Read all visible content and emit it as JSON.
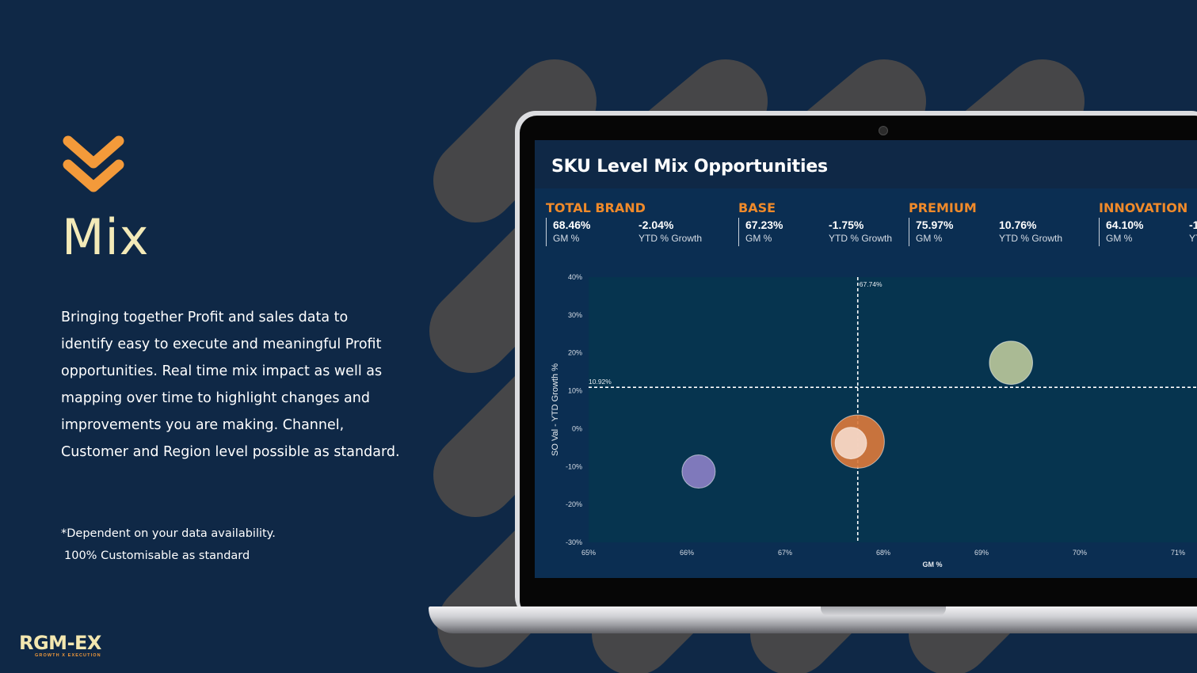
{
  "slide": {
    "title": "Mix",
    "description": "Bringing together Profit and sales data to identify easy to execute and meaningful Profit opportunities. Real time mix impact as well as mapping over time to highlight changes and improvements you are making. Channel, Customer and Region level possible as standard.",
    "note_line1": "*Dependent on your data availability.",
    "note_line2": "100% Customisable as standard",
    "logo_text": "RGM-EX",
    "logo_tagline": "GROWTH X EXECUTION",
    "chevron_icon": "double-chevron-down-icon",
    "colors": {
      "background": "#0f2846",
      "accent": "#f39a3a",
      "title": "#f3eab8"
    }
  },
  "dashboard": {
    "title": "SKU Level Mix Opportunities",
    "kpis": [
      {
        "label": "TOTAL BRAND",
        "gm_value": "68.46%",
        "gm_label": "GM %",
        "growth_value": "-2.04%",
        "growth_label": "YTD % Growth"
      },
      {
        "label": "BASE",
        "gm_value": "67.23%",
        "gm_label": "GM %",
        "growth_value": "-1.75%",
        "growth_label": "YTD % Growth"
      },
      {
        "label": "PREMIUM",
        "gm_value": "75.97%",
        "gm_label": "GM %",
        "growth_value": "10.76%",
        "growth_label": "YTD % Growth"
      },
      {
        "label": "INNOVATION",
        "gm_value": "64.10%",
        "gm_label": "GM %",
        "growth_value": "-1",
        "growth_label": "YT"
      }
    ]
  },
  "chart_data": {
    "type": "scatter",
    "xlabel": "GM %",
    "ylabel": "SO Val - YTD Growth %",
    "xlim": [
      65,
      71
    ],
    "ylim": [
      -30,
      40
    ],
    "x_ticks": [
      "65%",
      "66%",
      "67%",
      "68%",
      "69%",
      "70%",
      "71%"
    ],
    "y_ticks": [
      "40%",
      "30%",
      "20%",
      "10%",
      "0%",
      "-10%",
      "-20%",
      "-30%"
    ],
    "reference_lines": [
      {
        "axis": "x",
        "value": 67.74,
        "label": "67.74%"
      },
      {
        "axis": "y",
        "value": 10.92,
        "label": "10.92%"
      }
    ],
    "bubbles": [
      {
        "x": 66.12,
        "y": -11.3,
        "size": 1.0,
        "color": "#8a7fc4"
      },
      {
        "x": 67.74,
        "y": -3.4,
        "size": 1.6,
        "color": "#d9783c"
      },
      {
        "x": 67.67,
        "y": -3.8,
        "size": 0.95,
        "color": "#f4d8c8"
      },
      {
        "x": 69.3,
        "y": 17.4,
        "size": 1.3,
        "color": "#b9c59a"
      }
    ],
    "grid": false
  }
}
